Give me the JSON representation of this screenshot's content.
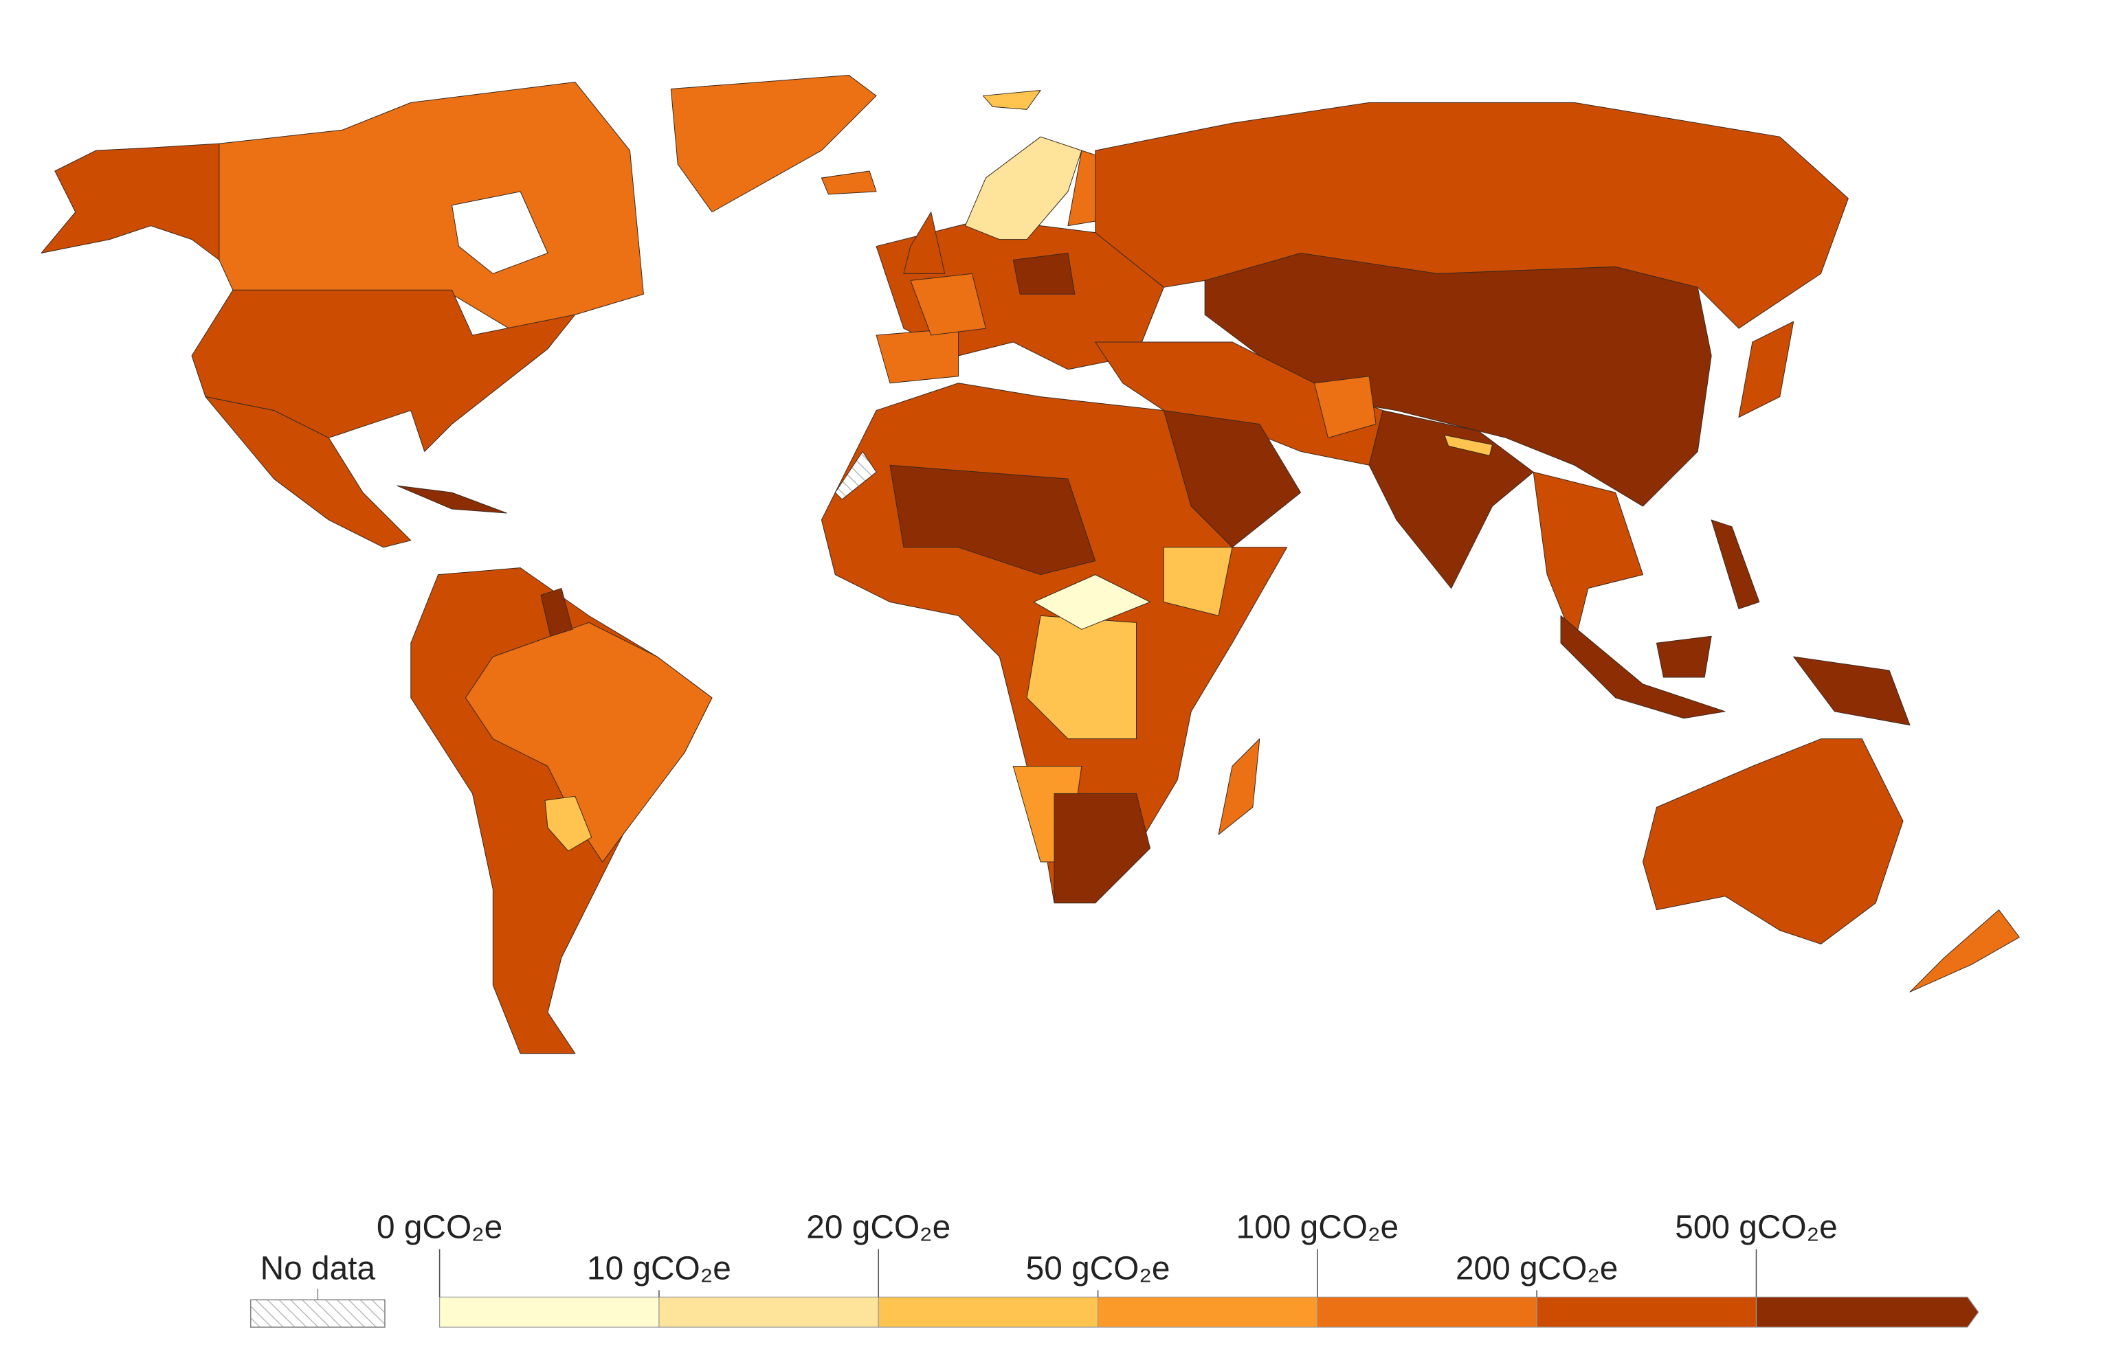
{
  "legend": {
    "no_data": "No data",
    "ticks": [
      {
        "value": 0,
        "label": "0 gCO₂e"
      },
      {
        "value": 10,
        "label": "10 gCO₂e"
      },
      {
        "value": 20,
        "label": "20 gCO₂e"
      },
      {
        "value": 50,
        "label": "50 gCO₂e"
      },
      {
        "value": 100,
        "label": "100 gCO₂e"
      },
      {
        "value": 200,
        "label": "200 gCO₂e"
      },
      {
        "value": 500,
        "label": "500 gCO₂e"
      }
    ],
    "colors": [
      "#fffcd0",
      "#fee39b",
      "#fec44f",
      "#fb9a29",
      "#ec7014",
      "#cc4c02",
      "#8c2d04"
    ]
  }
}
